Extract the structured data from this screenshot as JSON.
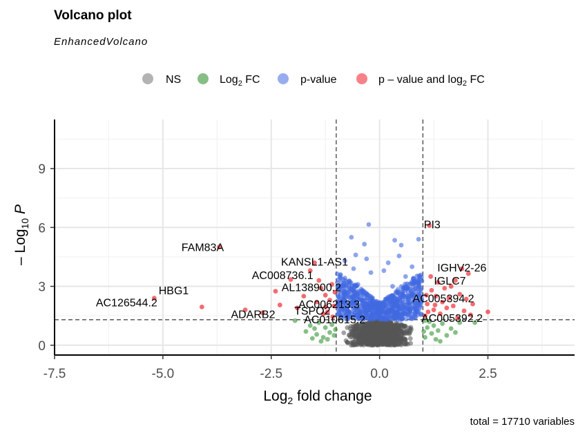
{
  "header": {
    "title": "Volcano plot",
    "subtitle": "EnhancedVolcano",
    "caption": "total = 17710 variables"
  },
  "chart_data": {
    "type": "scatter",
    "title": "Volcano plot",
    "subtitle": "EnhancedVolcano",
    "xlabel": "Log2 fold change",
    "ylabel": "-Log10 P",
    "xlim": [
      -7.5,
      4.5
    ],
    "ylim": [
      -0.5,
      11.5
    ],
    "x_ticks": [
      -7.5,
      -5.0,
      -2.5,
      0.0,
      2.5
    ],
    "x_tick_labels": [
      "-7.5",
      "-5.0",
      "-2.5",
      "0.0",
      "2.5"
    ],
    "y_ticks": [
      0,
      3,
      6,
      9
    ],
    "y_tick_labels": [
      "0",
      "3",
      "6",
      "9"
    ],
    "grid": true,
    "fc_cutoff": 1,
    "p_cutoff_log10": 1.3,
    "total_variables": 17710,
    "legend_position": "top",
    "legend": [
      {
        "key": "NS",
        "color": "#808080"
      },
      {
        "key": "Log2 FC",
        "color": "#228B22"
      },
      {
        "key": "p-value",
        "color": "#4169E1"
      },
      {
        "key": "p - value and log2 FC",
        "color": "#EE1C25"
      }
    ],
    "labeled_points": [
      {
        "name": "PI3",
        "x": 1.15,
        "y": 6.1
      },
      {
        "name": "FAM83A",
        "x": -3.7,
        "y": 5.0
      },
      {
        "name": "KANSL1-AS1",
        "x": -1.5,
        "y": 4.2
      },
      {
        "name": "AC008736.1",
        "x": -1.6,
        "y": 3.8
      },
      {
        "name": "IGHV2-26",
        "x": 1.9,
        "y": 3.9
      },
      {
        "name": "IGLC7",
        "x": 1.75,
        "y": 3.3
      },
      {
        "name": "HBG1",
        "x": -4.4,
        "y": 2.8
      },
      {
        "name": "AL138900.2",
        "x": -1.35,
        "y": 2.9
      },
      {
        "name": "AC126544.2",
        "x": -5.2,
        "y": 2.4
      },
      {
        "name": "AC006213.3",
        "x": -1.1,
        "y": 2.1
      },
      {
        "name": "AC005394.2",
        "x": 1.6,
        "y": 2.4
      },
      {
        "name": "ADARB2",
        "x": -2.6,
        "y": 1.6
      },
      {
        "name": "TSPO2",
        "x": -1.2,
        "y": 1.7
      },
      {
        "name": "AC010615.2",
        "x": -1.1,
        "y": 1.4
      },
      {
        "name": "AC005392.2",
        "x": 1.8,
        "y": 1.4
      }
    ],
    "red_points": [
      {
        "x": -5.2,
        "y": 2.4
      },
      {
        "x": -4.1,
        "y": 1.95
      },
      {
        "x": -3.7,
        "y": 5.0
      },
      {
        "x": -3.1,
        "y": 1.8
      },
      {
        "x": -2.7,
        "y": 1.65
      },
      {
        "x": -2.4,
        "y": 2.75
      },
      {
        "x": -2.3,
        "y": 2.05
      },
      {
        "x": -2.05,
        "y": 3.35
      },
      {
        "x": -1.9,
        "y": 1.9
      },
      {
        "x": -1.75,
        "y": 2.5
      },
      {
        "x": -1.6,
        "y": 3.8
      },
      {
        "x": -1.5,
        "y": 4.2
      },
      {
        "x": -1.45,
        "y": 2.2
      },
      {
        "x": -1.35,
        "y": 2.9
      },
      {
        "x": -1.3,
        "y": 1.6
      },
      {
        "x": -1.25,
        "y": 2.55
      },
      {
        "x": -1.2,
        "y": 1.7
      },
      {
        "x": -1.15,
        "y": 2.3
      },
      {
        "x": -1.1,
        "y": 3.1
      },
      {
        "x": -1.08,
        "y": 1.45
      },
      {
        "x": -1.05,
        "y": 2.0
      },
      {
        "x": -1.03,
        "y": 2.7
      },
      {
        "x": -1.25,
        "y": 1.95
      },
      {
        "x": -1.4,
        "y": 3.3
      },
      {
        "x": 1.05,
        "y": 1.5
      },
      {
        "x": 1.1,
        "y": 2.1
      },
      {
        "x": 1.15,
        "y": 6.1
      },
      {
        "x": 1.2,
        "y": 2.8
      },
      {
        "x": 1.25,
        "y": 1.8
      },
      {
        "x": 1.3,
        "y": 2.5
      },
      {
        "x": 1.35,
        "y": 3.2
      },
      {
        "x": 1.4,
        "y": 1.6
      },
      {
        "x": 1.45,
        "y": 2.2
      },
      {
        "x": 1.5,
        "y": 2.9
      },
      {
        "x": 1.55,
        "y": 1.9
      },
      {
        "x": 1.6,
        "y": 2.4
      },
      {
        "x": 1.65,
        "y": 3.0
      },
      {
        "x": 1.7,
        "y": 2.0
      },
      {
        "x": 1.75,
        "y": 3.3
      },
      {
        "x": 1.8,
        "y": 1.4
      },
      {
        "x": 1.85,
        "y": 2.6
      },
      {
        "x": 1.9,
        "y": 3.9
      },
      {
        "x": 1.95,
        "y": 1.75
      },
      {
        "x": 2.0,
        "y": 2.35
      },
      {
        "x": 2.05,
        "y": 3.65
      },
      {
        "x": 2.1,
        "y": 1.55
      },
      {
        "x": 2.15,
        "y": 2.1
      },
      {
        "x": 2.5,
        "y": 1.7
      },
      {
        "x": 1.08,
        "y": 2.55
      },
      {
        "x": 1.12,
        "y": 1.7
      },
      {
        "x": 1.18,
        "y": 3.5
      },
      {
        "x": 1.28,
        "y": 2.05
      }
    ],
    "green_points": [
      {
        "x": -1.95,
        "y": 1.25
      },
      {
        "x": -1.7,
        "y": 0.7
      },
      {
        "x": -1.6,
        "y": 1.0
      },
      {
        "x": -1.5,
        "y": 0.85
      },
      {
        "x": -1.45,
        "y": 0.55
      },
      {
        "x": -1.4,
        "y": 1.15
      },
      {
        "x": -1.3,
        "y": 0.4
      },
      {
        "x": -1.25,
        "y": 0.9
      },
      {
        "x": -1.2,
        "y": 0.3
      },
      {
        "x": -1.15,
        "y": 0.65
      },
      {
        "x": -1.1,
        "y": 1.05
      },
      {
        "x": -1.05,
        "y": 0.5
      },
      {
        "x": -1.35,
        "y": 0.2
      },
      {
        "x": -1.55,
        "y": 0.35
      },
      {
        "x": -1.02,
        "y": 0.8
      },
      {
        "x": 1.05,
        "y": 0.4
      },
      {
        "x": 1.1,
        "y": 0.9
      },
      {
        "x": 1.15,
        "y": 1.2
      },
      {
        "x": 1.2,
        "y": 0.6
      },
      {
        "x": 1.25,
        "y": 1.0
      },
      {
        "x": 1.3,
        "y": 0.3
      },
      {
        "x": 1.35,
        "y": 0.75
      },
      {
        "x": 1.45,
        "y": 1.1
      },
      {
        "x": 1.55,
        "y": 0.5
      },
      {
        "x": 1.65,
        "y": 0.85
      },
      {
        "x": 1.75,
        "y": 0.65
      },
      {
        "x": 1.85,
        "y": 1.15
      },
      {
        "x": 2.2,
        "y": 1.15
      },
      {
        "x": 1.05,
        "y": 1.25
      },
      {
        "x": 1.4,
        "y": 0.2
      },
      {
        "x": 1.02,
        "y": 0.7
      }
    ],
    "blue_points": [
      {
        "x": -0.25,
        "y": 6.15
      },
      {
        "x": -0.65,
        "y": 5.5
      },
      {
        "x": -0.35,
        "y": 5.15
      },
      {
        "x": 0.35,
        "y": 5.35
      },
      {
        "x": 0.5,
        "y": 5.1
      },
      {
        "x": 0.9,
        "y": 5.4
      },
      {
        "x": -0.8,
        "y": 4.3
      },
      {
        "x": -0.55,
        "y": 4.6
      },
      {
        "x": -0.3,
        "y": 4.4
      },
      {
        "x": 0.2,
        "y": 4.2
      },
      {
        "x": 0.45,
        "y": 4.55
      },
      {
        "x": 0.75,
        "y": 4.0
      },
      {
        "x": -0.9,
        "y": 3.6
      },
      {
        "x": -0.6,
        "y": 3.9
      },
      {
        "x": -0.2,
        "y": 3.7
      },
      {
        "x": 0.1,
        "y": 3.8
      },
      {
        "x": 0.6,
        "y": 3.5
      },
      {
        "x": 0.85,
        "y": 3.3
      },
      {
        "x": -0.95,
        "y": 2.9
      },
      {
        "x": -0.5,
        "y": 3.1
      },
      {
        "x": 0.3,
        "y": 3.0
      },
      {
        "x": 0.95,
        "y": 2.8
      },
      {
        "x": -0.85,
        "y": 2.4
      },
      {
        "x": 0.7,
        "y": 2.5
      },
      {
        "x": -0.75,
        "y": 1.9
      },
      {
        "x": 0.55,
        "y": 1.95
      },
      {
        "x": -0.45,
        "y": 1.6
      },
      {
        "x": 0.4,
        "y": 1.7
      }
    ],
    "cloud": {
      "ns_x": [
        -1.0,
        1.0
      ],
      "ns_y": [
        0.0,
        1.3
      ],
      "sig_x": [
        -1.0,
        1.0
      ],
      "sig_y": [
        1.3,
        3.8
      ]
    }
  }
}
